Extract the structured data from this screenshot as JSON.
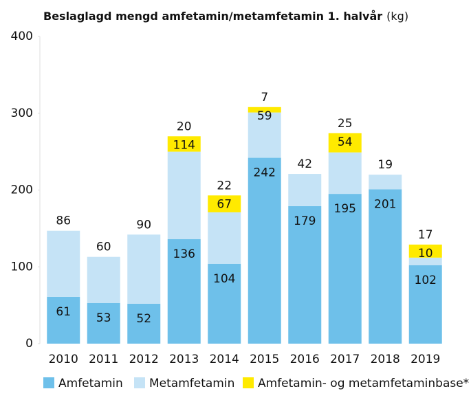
{
  "chart_data": {
    "type": "stacked_bar",
    "title": "Beslaglagd mengd amfetamin/metamfetamin 1. halvår",
    "unit": "(kg)",
    "categories": [
      "2010",
      "2011",
      "2012",
      "2013",
      "2014",
      "2015",
      "2016",
      "2017",
      "2018",
      "2019"
    ],
    "series": [
      {
        "name": "Amfetamin",
        "color": "#6ec0ea",
        "values": [
          61,
          53,
          52,
          136,
          104,
          242,
          179,
          195,
          201,
          102
        ]
      },
      {
        "name": "Metamfetamin",
        "color": "#c5e3f6",
        "values": [
          86,
          60,
          90,
          114,
          67,
          59,
          42,
          54,
          19,
          10
        ]
      },
      {
        "name": "Amfetamin- og metamfetaminbase*",
        "color": "#ffea00",
        "values": [
          null,
          null,
          null,
          20,
          22,
          7,
          null,
          25,
          null,
          17
        ]
      }
    ],
    "ylim": [
      0,
      400
    ],
    "yticks": [
      0,
      100,
      200,
      300,
      400
    ]
  }
}
